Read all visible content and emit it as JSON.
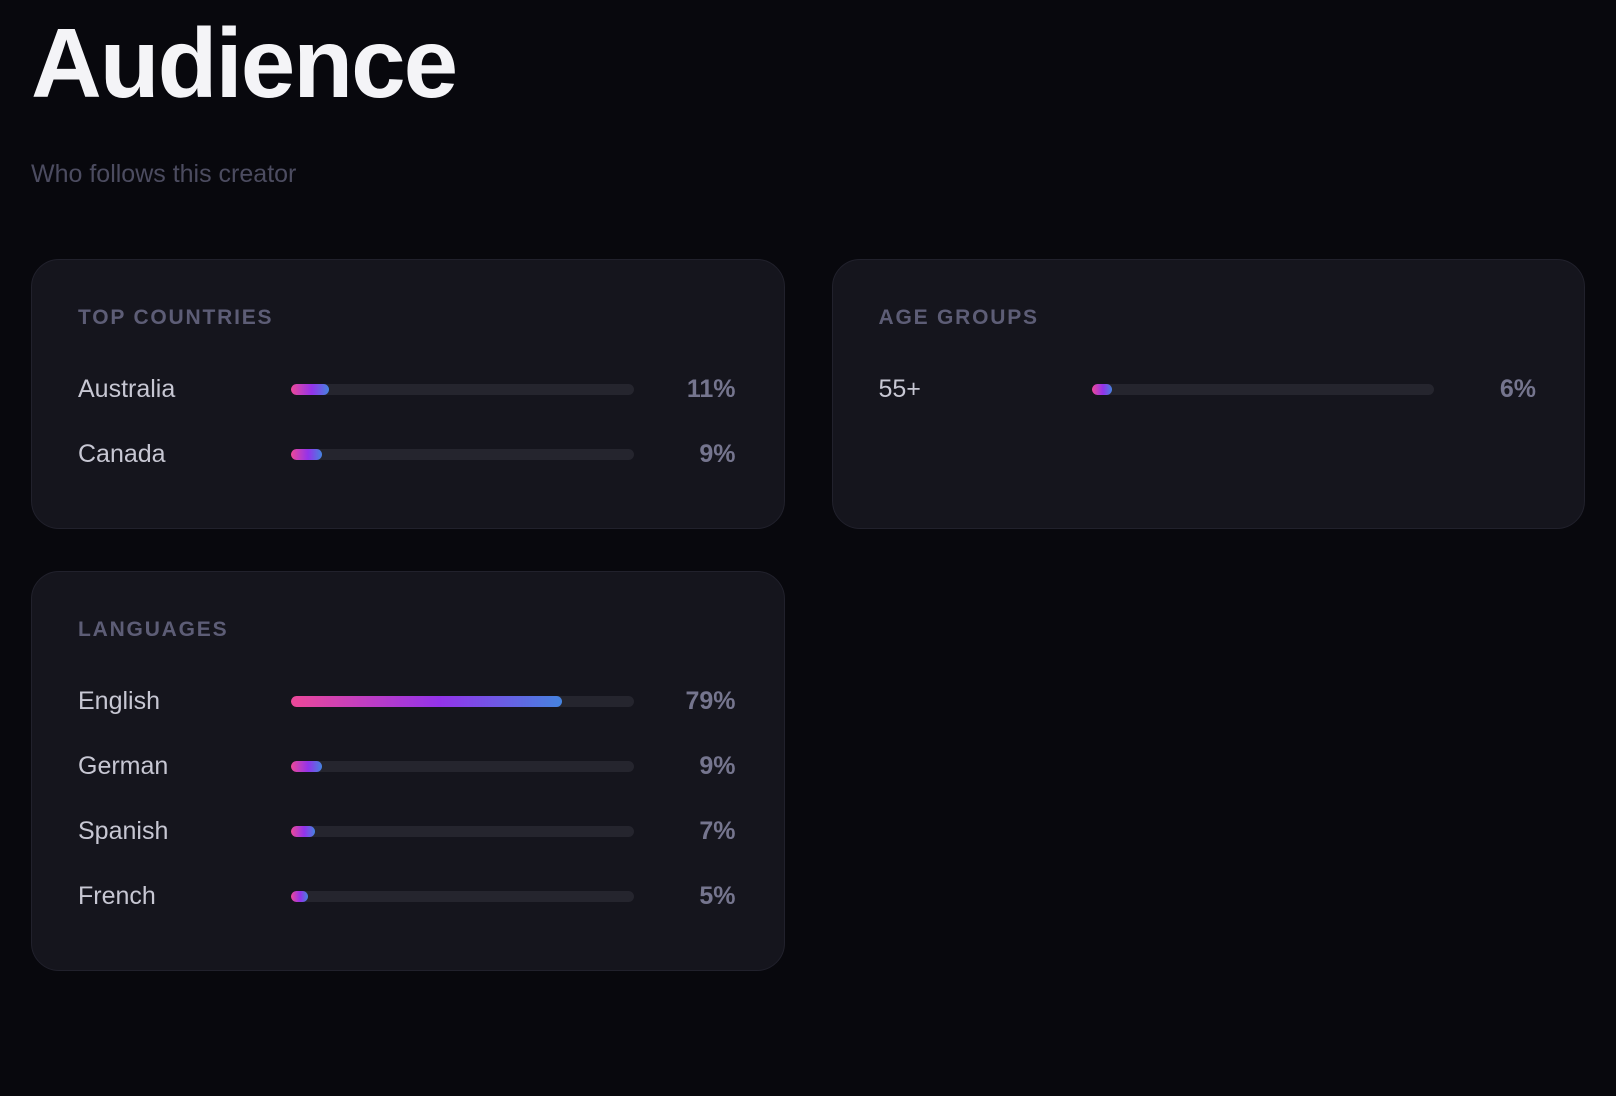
{
  "page": {
    "title": "Audience",
    "subtitle": "Who follows this creator"
  },
  "colors": {
    "page_background": "#08080d",
    "card_background": "#15151d",
    "card_border": "#21212c",
    "card_header_text": "#5d5d76",
    "label_text": "#c7c7d3",
    "value_text": "#75758e",
    "subtitle_text": "#4c4c60",
    "title_text": "#f4f4f7",
    "track": "#25252e",
    "bar_gradient_start": "#ec4899",
    "bar_gradient_mid": "#9333ea",
    "bar_gradient_end": "#4583df"
  },
  "cards": [
    {
      "title": "TOP COUNTRIES",
      "rows": [
        {
          "label": "Australia",
          "value": "11%",
          "percent": 11
        },
        {
          "label": "Canada",
          "value": "9%",
          "percent": 9
        }
      ]
    },
    {
      "title": "AGE GROUPS",
      "rows": [
        {
          "label": "55+",
          "value": "6%",
          "percent": 6
        }
      ]
    },
    {
      "title": "LANGUAGES",
      "rows": [
        {
          "label": "English",
          "value": "79%",
          "percent": 79
        },
        {
          "label": "German",
          "value": "9%",
          "percent": 9
        },
        {
          "label": "Spanish",
          "value": "7%",
          "percent": 7
        },
        {
          "label": "French",
          "value": "5%",
          "percent": 5
        }
      ]
    }
  ]
}
